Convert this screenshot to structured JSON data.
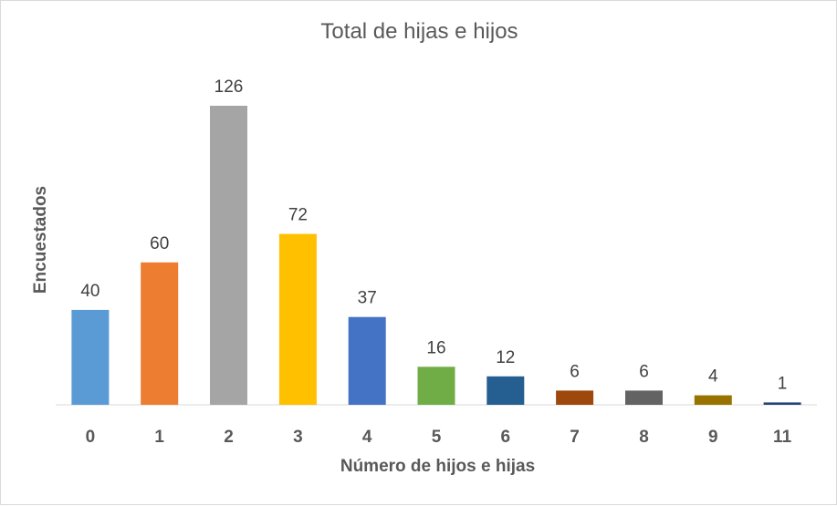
{
  "chart_data": {
    "type": "bar",
    "title": "Total de hijas e hijos",
    "xlabel": "Número de hijos e hijas",
    "ylabel": "Encuestados",
    "categories": [
      "0",
      "1",
      "2",
      "3",
      "4",
      "5",
      "6",
      "7",
      "8",
      "9",
      "11"
    ],
    "values": [
      40,
      60,
      126,
      72,
      37,
      16,
      12,
      6,
      6,
      4,
      1
    ],
    "data_labels": [
      "40",
      "60",
      "126",
      "72",
      "37",
      "16",
      "12",
      "6",
      "6",
      "4",
      "1"
    ],
    "colors": [
      "#5b9bd5",
      "#ed7d31",
      "#a5a5a5",
      "#ffc000",
      "#4472c4",
      "#70ad47",
      "#255e91",
      "#9e480e",
      "#636363",
      "#997300",
      "#264478"
    ],
    "ylim": [
      0,
      126
    ],
    "grid": false,
    "legend": "none"
  }
}
